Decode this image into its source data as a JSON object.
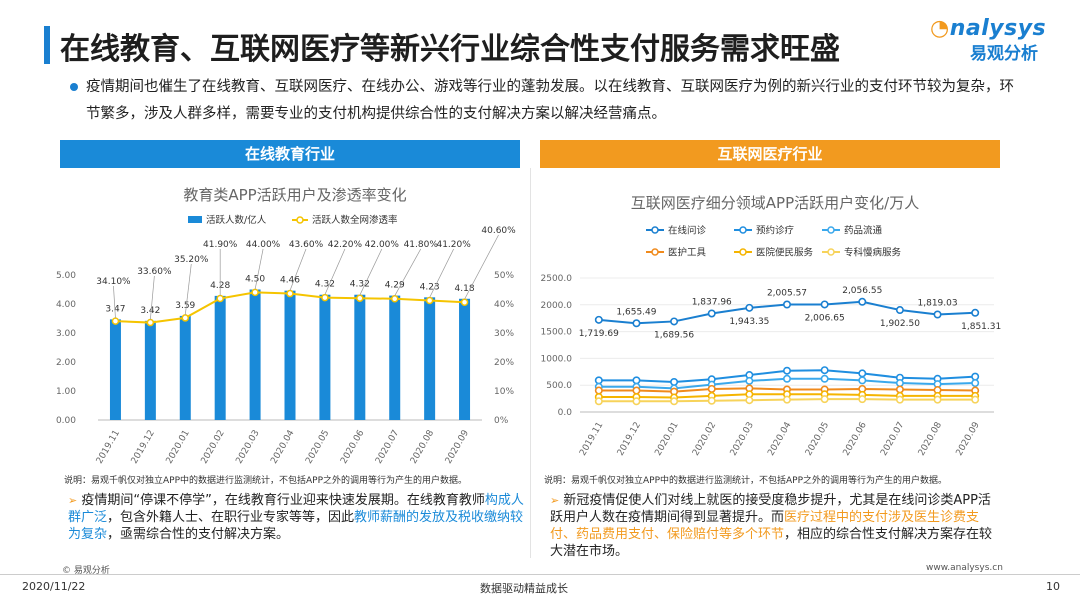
{
  "page": {
    "title": "在线教育、互联网医疗等新兴行业综合性支付服务需求旺盛",
    "logo_en": "nalysys",
    "logo_cn": "易观分析",
    "intro": "疫情期间也催生了在线教育、互联网医疗、在线办公、游戏等行业的蓬勃发展。以在线教育、互联网医疗为例的新兴行业的支付环节较为复杂，环节繁多，涉及人群多样，需要专业的支付机构提供综合性的支付解决方案以解决经营痛点。",
    "band_left": "在线教育行业",
    "band_right": "互联网医疗行业",
    "note_left": "说明：易观千帆仅对独立APP中的数据进行监测统计，不包括APP之外的调用等行为产生的用户数据。",
    "note_right": "说明：易观千帆仅对独立APP中的数据进行监测统计，不包括APP之外的调用等行为产生的用户数据。",
    "bullet_left": {
      "p1": "疫情期间“停课不停学”，在线教育行业迎来快速发展期。在线教育教师",
      "h1": "构成人群广泛",
      "p2": "，包含外籍人士、在职行业专家等等，因此",
      "h2": "教师薪酬的发放及税收缴纳较为复杂",
      "p3": "，亟需综合性的支付解决方案。"
    },
    "bullet_right": {
      "p1": "新冠疫情促使人们对线上就医的接受度稳步提升，尤其是在线问诊类APP活跃用户人数在疫情期间得到显著提升。而",
      "h1": "医疗过程中的支付涉及医生诊费支付、药品费用支付、保险赔付等多个环节",
      "p2": "，相应的综合性支付解决方案存在较大潜在市场。"
    },
    "footer_src": "© 易观分析",
    "footer_url": "www.analysys.cn",
    "footer_date": "2020/11/22",
    "footer_center": "数据驱动精益成长",
    "footer_page": "10"
  },
  "colors": {
    "brand": "#1a7fd0",
    "orange": "#f29a1f",
    "bar": "#1a8ad8",
    "line_yellow": "#f5c400"
  },
  "chart_data": [
    {
      "type": "bar",
      "title": "教育类APP活跃用户及渗透率变化",
      "categories": [
        "2019.11",
        "2019.12",
        "2020.01",
        "2020.02",
        "2020.03",
        "2020.04",
        "2020.05",
        "2020.06",
        "2020.07",
        "2020.08",
        "2020.09"
      ],
      "series": [
        {
          "name": "活跃人数/亿人",
          "type": "bar",
          "axis": "left",
          "values": [
            3.47,
            3.42,
            3.59,
            4.28,
            4.5,
            4.46,
            4.32,
            4.32,
            4.29,
            4.23,
            4.18
          ],
          "labels": [
            "3.47",
            "3.42",
            "3.59",
            "4.28",
            "4.50",
            "4.46",
            "4.32",
            "4.32",
            "4.29",
            "4.23",
            "4.18"
          ]
        },
        {
          "name": "活跃人数全网渗透率",
          "type": "line",
          "axis": "right",
          "values": [
            34.1,
            33.6,
            35.2,
            41.9,
            44.0,
            43.6,
            42.2,
            42.0,
            41.8,
            41.2,
            40.6
          ],
          "labels": [
            "34.10%",
            "33.60%",
            "35.20%",
            "41.90%",
            "44.00%",
            "43.60%",
            "42.20%",
            "42.00%",
            "41.80%",
            "41.20%",
            "40.60%"
          ]
        }
      ],
      "ylim_left": [
        0,
        5
      ],
      "yticks_left": [
        "0.00",
        "1.00",
        "2.00",
        "3.00",
        "4.00",
        "5.00"
      ],
      "ylim_right": [
        0,
        50
      ],
      "yticks_right": [
        "0%",
        "10%",
        "20%",
        "30%",
        "40%",
        "50%"
      ]
    },
    {
      "type": "line",
      "title": "互联网医疗细分领域APP活跃用户变化/万人",
      "categories": [
        "2019.11",
        "2019.12",
        "2020.01",
        "2020.02",
        "2020.03",
        "2020.04",
        "2020.05",
        "2020.06",
        "2020.07",
        "2020.08",
        "2020.09"
      ],
      "series": [
        {
          "name": "在线问诊",
          "color": "#1a7fd0",
          "values": [
            1719.69,
            1655.49,
            1689.56,
            1837.96,
            1943.35,
            2005.57,
            2006.65,
            2056.55,
            1902.5,
            1819.03,
            1851.31
          ],
          "labels": [
            "1,719.69",
            "1,655.49",
            "1,689.56",
            "1,837.96",
            "1,943.35",
            "2,005.57",
            "2,006.65",
            "2,056.55",
            "1,902.50",
            "1,819.03",
            "1,851.31"
          ]
        },
        {
          "name": "预约诊疗",
          "color": "#1f8ee0",
          "values": [
            590,
            590,
            560,
            610,
            690,
            770,
            780,
            720,
            640,
            620,
            660
          ]
        },
        {
          "name": "药品流通",
          "color": "#3aa8ec",
          "values": [
            470,
            470,
            440,
            510,
            580,
            620,
            620,
            590,
            540,
            520,
            540
          ]
        },
        {
          "name": "医护工具",
          "color": "#f08a1c",
          "values": [
            400,
            400,
            380,
            430,
            440,
            420,
            420,
            430,
            420,
            410,
            400
          ]
        },
        {
          "name": "医院便民服务",
          "color": "#f5b400",
          "values": [
            280,
            280,
            270,
            300,
            330,
            330,
            330,
            320,
            300,
            300,
            300
          ]
        },
        {
          "name": "专科慢病服务",
          "color": "#f7d35a",
          "values": [
            200,
            200,
            200,
            210,
            220,
            230,
            240,
            240,
            230,
            230,
            230
          ]
        }
      ],
      "ylim": [
        0,
        2500
      ],
      "yticks": [
        "0.0",
        "500.0",
        "1000.0",
        "1500.0",
        "2000.0",
        "2500.0"
      ]
    }
  ]
}
